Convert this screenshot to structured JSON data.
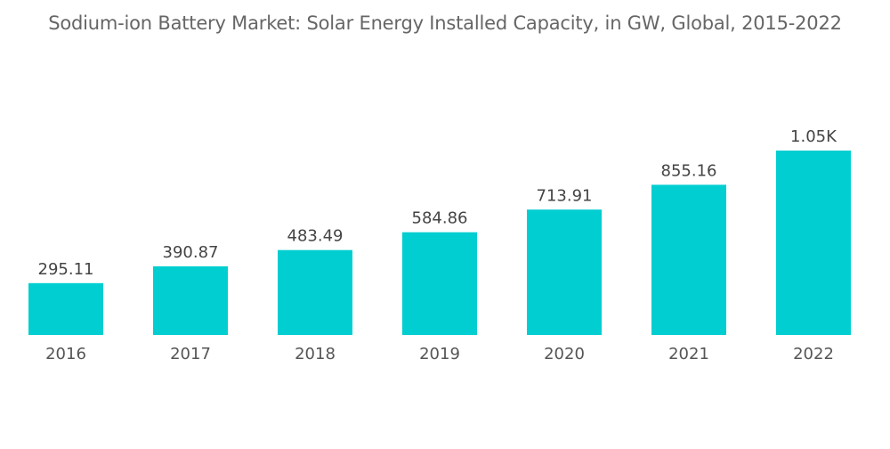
{
  "chart_data": {
    "type": "bar",
    "title": "Sodium-ion Battery Market: Solar Energy Installed Capacity, in GW, Global, 2015-2022",
    "categories": [
      "2016",
      "2017",
      "2018",
      "2019",
      "2020",
      "2021",
      "2022"
    ],
    "values": [
      295.11,
      390.87,
      483.49,
      584.86,
      713.91,
      855.16,
      1050
    ],
    "data_labels": [
      "295.11",
      "390.87",
      "483.49",
      "584.86",
      "713.91",
      "855.16",
      "1.05K"
    ],
    "xlabel": "",
    "ylabel": "",
    "ylim": [
      0,
      1050
    ],
    "grid": false,
    "legend": "none",
    "colors": {
      "bar": "#00CED1",
      "label": "#444444",
      "title": "#666666"
    }
  }
}
